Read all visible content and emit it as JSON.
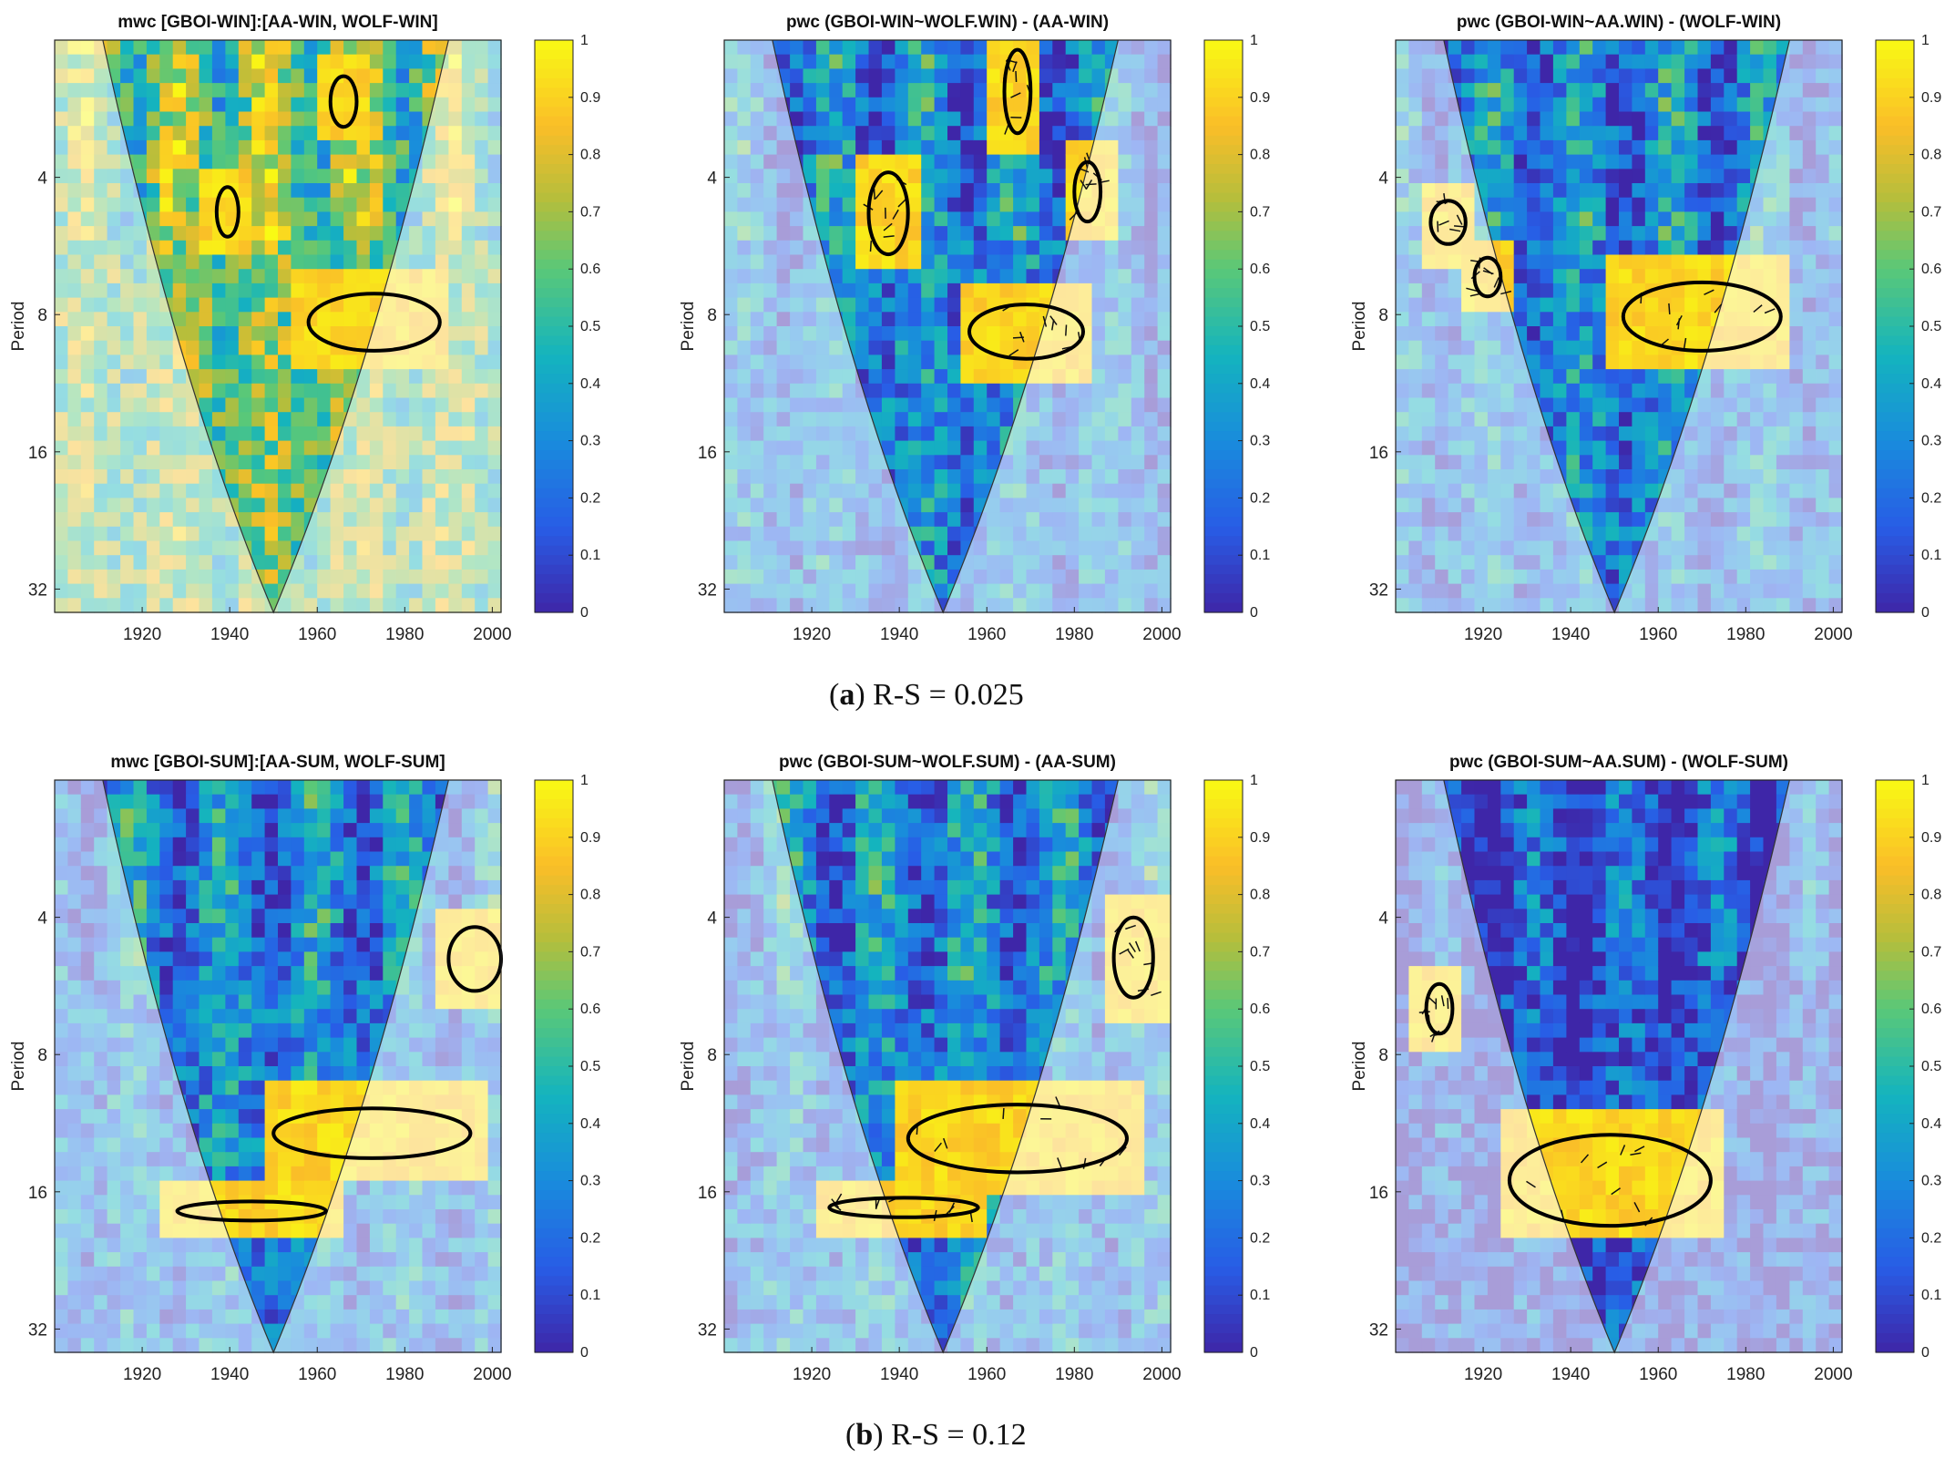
{
  "figure": {
    "caption_a": {
      "letter": "a",
      "text": "R-S = 0.025"
    },
    "caption_b": {
      "letter": "b",
      "text": "R-S = 0.12"
    }
  },
  "chart_data": [
    {
      "type": "heatmap",
      "title": "mwc [GBOI-WIN]:[AA-WIN, WOLF-WIN]",
      "ylabel": "Period",
      "xlim": [
        1900,
        2002
      ],
      "xticks": [
        1920,
        1940,
        1960,
        1980,
        2000
      ],
      "yticks": [
        4,
        8,
        16,
        32
      ],
      "ylim": [
        2,
        36
      ],
      "y_scale": "log2-reversed",
      "colorbar": {
        "min": 0,
        "max": 1,
        "ticks": [
          "0",
          "0.1",
          "0.2",
          "0.3",
          "0.4",
          "0.5",
          "0.6",
          "0.7",
          "0.8",
          "0.9",
          "1"
        ]
      },
      "dominant": "yellow",
      "arrows": false,
      "significant_regions": [
        {
          "x": [
            1958,
            1988
          ],
          "period": [
            7.2,
            9.6
          ]
        },
        {
          "x": [
            1937,
            1942
          ],
          "period": [
            4.2,
            5.4
          ]
        },
        {
          "x": [
            1963,
            1969
          ],
          "period": [
            2.4,
            3.1
          ]
        }
      ]
    },
    {
      "type": "heatmap",
      "title": "pwc (GBOI-WIN~WOLF.WIN) - (AA-WIN)",
      "ylabel": "Period",
      "xlim": [
        1900,
        2002
      ],
      "xticks": [
        1920,
        1940,
        1960,
        1980,
        2000
      ],
      "yticks": [
        4,
        8,
        16,
        32
      ],
      "ylim": [
        2,
        36
      ],
      "y_scale": "log2-reversed",
      "colorbar": {
        "min": 0,
        "max": 1,
        "ticks": [
          "0",
          "0.1",
          "0.2",
          "0.3",
          "0.4",
          "0.5",
          "0.6",
          "0.7",
          "0.8",
          "0.9",
          "1"
        ]
      },
      "dominant": "blue",
      "arrows": true,
      "significant_regions": [
        {
          "x": [
            1956,
            1982
          ],
          "period": [
            7.6,
            10.0
          ]
        },
        {
          "x": [
            1933,
            1942
          ],
          "period": [
            3.9,
            5.9
          ]
        },
        {
          "x": [
            1980,
            1986
          ],
          "period": [
            3.7,
            5.0
          ]
        },
        {
          "x": [
            1964,
            1970
          ],
          "period": [
            2.1,
            3.2
          ]
        }
      ]
    },
    {
      "type": "heatmap",
      "title": "pwc (GBOI-WIN~AA.WIN) - (WOLF-WIN)",
      "ylabel": "Period",
      "xlim": [
        1900,
        2002
      ],
      "xticks": [
        1920,
        1940,
        1960,
        1980,
        2000
      ],
      "yticks": [
        4,
        8,
        16,
        32
      ],
      "ylim": [
        2,
        36
      ],
      "y_scale": "log2-reversed",
      "colorbar": {
        "min": 0,
        "max": 1,
        "ticks": [
          "0",
          "0.1",
          "0.2",
          "0.3",
          "0.4",
          "0.5",
          "0.6",
          "0.7",
          "0.8",
          "0.9",
          "1"
        ]
      },
      "dominant": "blue",
      "arrows": true,
      "significant_regions": [
        {
          "x": [
            1952,
            1988
          ],
          "period": [
            6.8,
            9.6
          ]
        },
        {
          "x": [
            1908,
            1916
          ],
          "period": [
            4.5,
            5.6
          ]
        },
        {
          "x": [
            1918,
            1924
          ],
          "period": [
            6.0,
            7.3
          ]
        }
      ]
    },
    {
      "type": "heatmap",
      "title": "mwc [GBOI-SUM]:[AA-SUM, WOLF-SUM]",
      "ylabel": "Period",
      "xlim": [
        1900,
        2002
      ],
      "xticks": [
        1920,
        1940,
        1960,
        1980,
        2000
      ],
      "yticks": [
        4,
        8,
        16,
        32
      ],
      "ylim": [
        2,
        36
      ],
      "y_scale": "log2-reversed",
      "colorbar": {
        "min": 0,
        "max": 1,
        "ticks": [
          "0",
          "0.1",
          "0.2",
          "0.3",
          "0.4",
          "0.5",
          "0.6",
          "0.7",
          "0.8",
          "0.9",
          "1"
        ]
      },
      "dominant": "blue",
      "arrows": false,
      "significant_regions": [
        {
          "x": [
            1950,
            1995
          ],
          "period": [
            10.5,
            13.5
          ]
        },
        {
          "x": [
            1928,
            1962
          ],
          "period": [
            16.8,
            18.5
          ]
        },
        {
          "x": [
            1990,
            2002
          ],
          "period": [
            4.2,
            5.8
          ]
        }
      ]
    },
    {
      "type": "heatmap",
      "title": "pwc (GBOI-SUM~WOLF.SUM) - (AA-SUM)",
      "ylabel": "Period",
      "xlim": [
        1900,
        2002
      ],
      "xticks": [
        1920,
        1940,
        1960,
        1980,
        2000
      ],
      "yticks": [
        4,
        8,
        16,
        32
      ],
      "ylim": [
        2,
        36
      ],
      "y_scale": "log2-reversed",
      "colorbar": {
        "min": 0,
        "max": 1,
        "ticks": [
          "0",
          "0.1",
          "0.2",
          "0.3",
          "0.4",
          "0.5",
          "0.6",
          "0.7",
          "0.8",
          "0.9",
          "1"
        ]
      },
      "dominant": "blue",
      "arrows": true,
      "significant_regions": [
        {
          "x": [
            1942,
            1992
          ],
          "period": [
            10.3,
            14.5
          ]
        },
        {
          "x": [
            1924,
            1958
          ],
          "period": [
            16.5,
            18.2
          ]
        },
        {
          "x": [
            1989,
            1998
          ],
          "period": [
            4.0,
            6.0
          ]
        }
      ]
    },
    {
      "type": "heatmap",
      "title": "pwc (GBOI-SUM~AA.SUM) - (WOLF-SUM)",
      "ylabel": "Period",
      "xlim": [
        1900,
        2002
      ],
      "xticks": [
        1920,
        1940,
        1960,
        1980,
        2000
      ],
      "yticks": [
        4,
        8,
        16,
        32
      ],
      "ylim": [
        2,
        36
      ],
      "y_scale": "log2-reversed",
      "colorbar": {
        "min": 0,
        "max": 1,
        "ticks": [
          "0",
          "0.1",
          "0.2",
          "0.3",
          "0.4",
          "0.5",
          "0.6",
          "0.7",
          "0.8",
          "0.9",
          "1"
        ]
      },
      "dominant": "darkblue",
      "arrows": true,
      "significant_regions": [
        {
          "x": [
            1926,
            1972
          ],
          "period": [
            12.0,
            19.0
          ]
        },
        {
          "x": [
            1907,
            1913
          ],
          "period": [
            5.6,
            7.2
          ]
        }
      ]
    }
  ]
}
